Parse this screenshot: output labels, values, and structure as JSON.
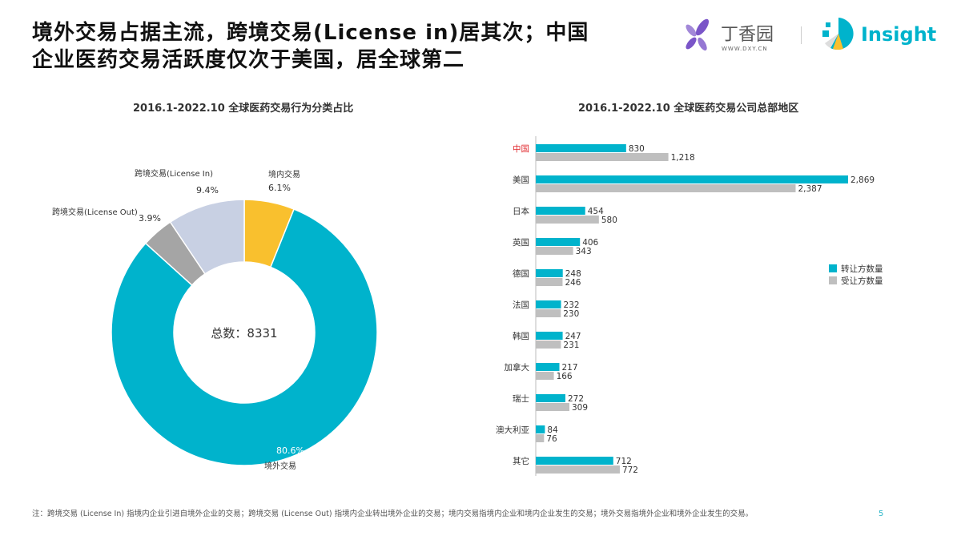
{
  "header": {
    "title_line1": "境外交易占据主流，跨境交易(License in)居其次；中国",
    "title_line2": "企业医药交易活跃度仅次于美国，居全球第二",
    "logo_dxy_name": "丁香园",
    "logo_dxy_url": "WWW.DXY.CN",
    "logo_insight": "Insight"
  },
  "footer": {
    "note": "注：跨境交易 (License In) 指境内企业引进自境外企业的交易；跨境交易 (License Out) 指境内企业转出境外企业的交易；境内交易指境内企业和境内企业发生的交易；境外交易指境外企业和境外企业发生的交易。",
    "page": "5"
  },
  "chart_data": [
    {
      "type": "pie",
      "title": "2016.1-2022.10 全球医药交易行为分类占比",
      "center_label": "总数：8331",
      "slices": [
        {
          "label": "境内交易",
          "value": 6.1,
          "display": "6.1%",
          "color": "#F9C02E"
        },
        {
          "label": "境外交易",
          "value": 80.6,
          "display": "80.6%",
          "color": "#00B3CC"
        },
        {
          "label": "跨境交易(License Out)",
          "value": 3.9,
          "display": "3.9%",
          "color": "#A5A5A5"
        },
        {
          "label": "跨境交易(License In)",
          "value": 9.4,
          "display": "9.4%",
          "color": "#C8D0E3"
        }
      ]
    },
    {
      "type": "bar",
      "orientation": "horizontal",
      "title": "2016.1-2022.10 全球医药交易公司总部地区",
      "categories": [
        "中国",
        "美国",
        "日本",
        "英国",
        "德国",
        "法国",
        "韩国",
        "加拿大",
        "瑞士",
        "澳大利亚",
        "其它"
      ],
      "highlight_category": "中国",
      "highlight_color": "#E0262B",
      "series": [
        {
          "name": "转让方数量",
          "color": "#00B3CC",
          "values": [
            830,
            2869,
            454,
            406,
            248,
            232,
            247,
            217,
            272,
            84,
            712
          ]
        },
        {
          "name": "受让方数量",
          "color": "#BFBFBF",
          "values": [
            1218,
            2387,
            580,
            343,
            246,
            230,
            231,
            166,
            309,
            76,
            772
          ]
        }
      ],
      "legend": "right"
    }
  ]
}
